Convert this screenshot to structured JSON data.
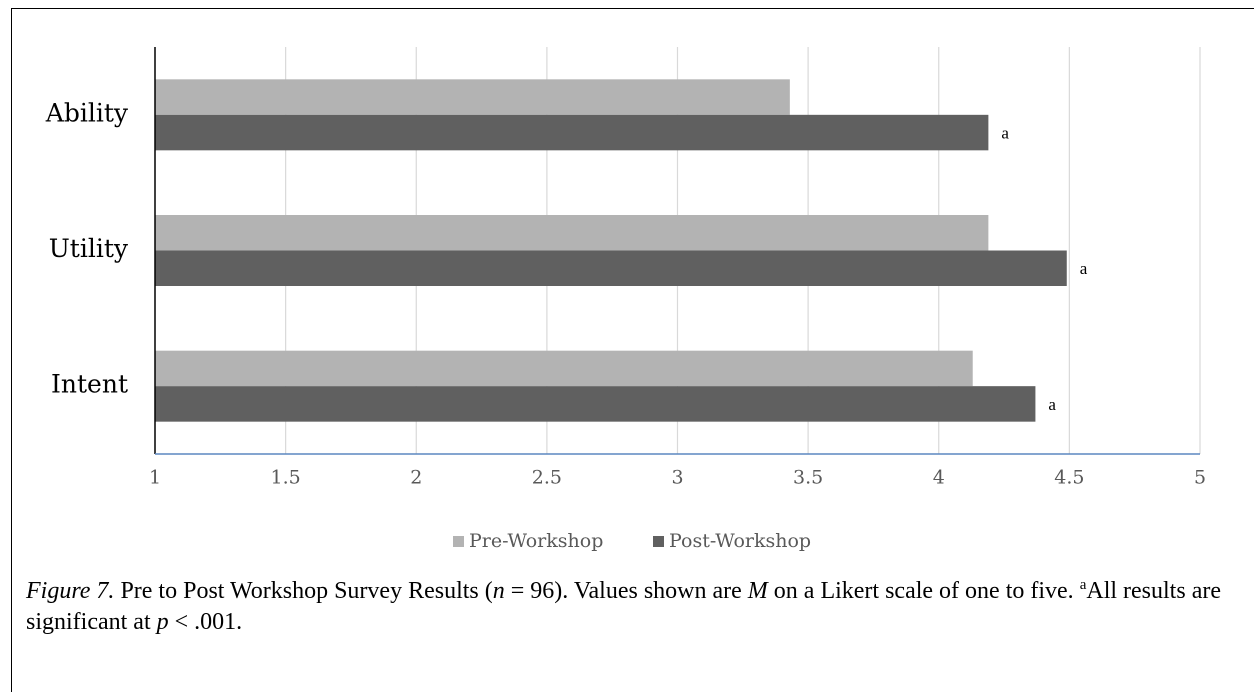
{
  "chart_data": {
    "type": "bar",
    "orientation": "horizontal",
    "categories": [
      "Ability",
      "Utility",
      "Intent"
    ],
    "series": [
      {
        "name": "Pre-Workshop",
        "values": [
          3.43,
          4.19,
          4.13
        ],
        "color": "#b3b3b3"
      },
      {
        "name": "Post-Workshop",
        "values": [
          4.19,
          4.49,
          4.37
        ],
        "color": "#606060"
      }
    ],
    "annotations": [
      "a",
      "a",
      "a"
    ],
    "xlim": [
      1,
      5
    ],
    "xticks": [
      "1",
      "1.5",
      "2",
      "2.5",
      "3",
      "3.5",
      "4",
      "4.5",
      "5"
    ],
    "grid": true,
    "legend_position": "bottom",
    "title": "",
    "xlabel": "",
    "ylabel": ""
  },
  "caption": {
    "figure_label": "Figure 7.",
    "text_1": " Pre to Post Workshop Survey Results (",
    "n_symbol": "n",
    "text_2": " = 96). Values shown are ",
    "m_symbol": "M",
    "text_3": " on a Likert scale of one to five.  ",
    "footnote_mark": "a",
    "text_4": "All results are significant at ",
    "p_symbol": "p",
    "text_5": " < .001."
  }
}
